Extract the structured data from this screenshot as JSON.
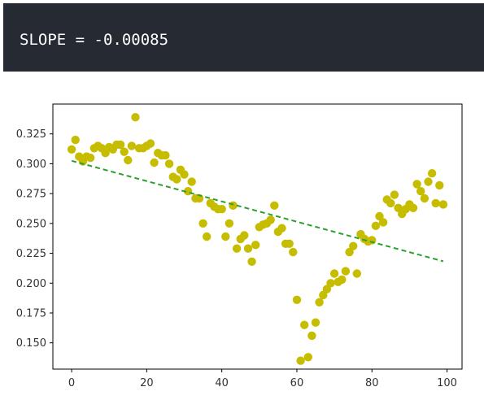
{
  "output": {
    "text": "SLOPE = -0.00085"
  },
  "colors": {
    "points": "#c6bd00",
    "fit_line": "#2ca02c",
    "bar_bg": "#262a33"
  },
  "chart_data": {
    "type": "scatter",
    "title": "",
    "xlabel": "",
    "ylabel": "",
    "xlim": [
      -5,
      104
    ],
    "ylim": [
      0.128,
      0.35
    ],
    "xticks": [
      0,
      20,
      40,
      60,
      80,
      100
    ],
    "yticks": [
      0.15,
      0.175,
      0.2,
      0.225,
      0.25,
      0.275,
      0.3,
      0.325
    ],
    "xtick_labels": [
      "0",
      "20",
      "40",
      "60",
      "80",
      "100"
    ],
    "ytick_labels": [
      "0.150",
      "0.175",
      "0.200",
      "0.225",
      "0.250",
      "0.275",
      "0.300",
      "0.325"
    ],
    "grid": false,
    "x": [
      0,
      1,
      2,
      3,
      4,
      5,
      6,
      7,
      8,
      9,
      10,
      11,
      12,
      13,
      14,
      15,
      16,
      17,
      18,
      19,
      20,
      21,
      22,
      23,
      24,
      25,
      26,
      27,
      28,
      29,
      30,
      31,
      32,
      33,
      34,
      35,
      36,
      37,
      38,
      39,
      40,
      41,
      42,
      43,
      44,
      45,
      46,
      47,
      48,
      49,
      50,
      51,
      52,
      53,
      54,
      55,
      56,
      57,
      58,
      59,
      60,
      61,
      62,
      63,
      64,
      65,
      66,
      67,
      68,
      69,
      70,
      71,
      72,
      73,
      74,
      75,
      76,
      77,
      78,
      79,
      80,
      81,
      82,
      83,
      84,
      85,
      86,
      87,
      88,
      89,
      90,
      91,
      92,
      93,
      94,
      95,
      96,
      97,
      98,
      99
    ],
    "y": [
      0.312,
      0.32,
      0.306,
      0.302,
      0.306,
      0.305,
      0.313,
      0.315,
      0.313,
      0.309,
      0.314,
      0.312,
      0.316,
      0.316,
      0.31,
      0.303,
      0.315,
      0.339,
      0.313,
      0.313,
      0.315,
      0.317,
      0.301,
      0.309,
      0.307,
      0.307,
      0.3,
      0.289,
      0.287,
      0.295,
      0.291,
      0.277,
      0.285,
      0.271,
      0.271,
      0.25,
      0.239,
      0.267,
      0.264,
      0.262,
      0.262,
      0.239,
      0.25,
      0.265,
      0.229,
      0.237,
      0.24,
      0.229,
      0.218,
      0.232,
      0.247,
      0.249,
      0.25,
      0.253,
      0.265,
      0.243,
      0.246,
      0.233,
      0.233,
      0.226,
      0.186,
      0.135,
      0.165,
      0.138,
      0.156,
      0.167,
      0.184,
      0.19,
      0.195,
      0.2,
      0.208,
      0.201,
      0.203,
      0.21,
      0.226,
      0.231,
      0.208,
      0.241,
      0.237,
      0.235,
      0.236,
      0.248,
      0.256,
      0.251,
      0.27,
      0.267,
      0.274,
      0.263,
      0.258,
      0.262,
      0.266,
      0.263,
      0.283,
      0.277,
      0.271,
      0.285,
      0.292,
      0.267,
      0.282,
      0.266
    ],
    "fit_line": {
      "style": "dashed",
      "x": [
        0,
        99
      ],
      "y": [
        0.3025,
        0.2183
      ]
    }
  }
}
